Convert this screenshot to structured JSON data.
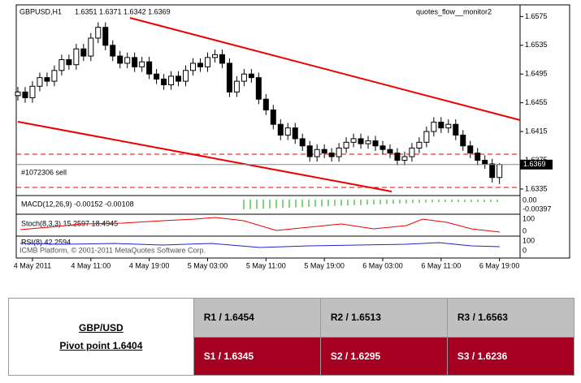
{
  "chart_data": {
    "type": "candlestick",
    "title": "GBPUSD,H1",
    "header_values": "1.6351 1.6371 1.6342 1.6369",
    "indicator_name": "quotes_flow__monitor2",
    "order_label": "#1072306 sell",
    "watermark": "ICMB Platform, © 2001-2011 MetaQuotes Software Corp.",
    "categories": [
      null,
      null,
      "4 May 2011",
      null,
      null,
      null,
      null,
      null,
      null,
      null,
      "4 May 11:00",
      null,
      null,
      null,
      null,
      null,
      null,
      null,
      "4 May 19:00",
      null,
      null,
      null,
      null,
      null,
      null,
      null,
      "5 May 03:00",
      null,
      null,
      null,
      null,
      null,
      null,
      null,
      "5 May 11:00",
      null,
      null,
      null,
      null,
      null,
      null,
      null,
      "5 May 19:00",
      null,
      null,
      null,
      null,
      null,
      null,
      null,
      "6 May 03:00",
      null,
      null,
      null,
      null,
      null,
      null,
      null,
      "6 May 11:00",
      null,
      null,
      null,
      null,
      null,
      null,
      null,
      "6 May 19:00"
    ],
    "open": [
      1.6465,
      1.647,
      1.6462,
      1.6478,
      1.649,
      1.6485,
      1.65,
      1.6515,
      1.6508,
      1.653,
      1.652,
      1.6545,
      1.656,
      1.6535,
      1.652,
      1.651,
      1.6518,
      1.6505,
      1.6512,
      1.6495,
      1.6488,
      1.648,
      1.6492,
      1.6485,
      1.65,
      1.651,
      1.6505,
      1.6518,
      1.6522,
      1.651,
      1.647,
      1.6485,
      1.6495,
      1.649,
      1.646,
      1.6445,
      1.6425,
      1.641,
      1.642,
      1.6405,
      1.6395,
      1.638,
      1.639,
      1.6385,
      1.638,
      1.6392,
      1.64,
      1.6405,
      1.6398,
      1.6402,
      1.6395,
      1.639,
      1.6385,
      1.6375,
      1.638,
      1.6392,
      1.64,
      1.6415,
      1.6428,
      1.642,
      1.6425,
      1.641,
      1.6395,
      1.6385,
      1.6375,
      1.637,
      1.6351
    ],
    "high": [
      1.6477,
      1.6477,
      1.6485,
      1.6497,
      1.6497,
      1.6507,
      1.6522,
      1.6522,
      1.6537,
      1.6537,
      1.6552,
      1.6567,
      1.6567,
      1.6542,
      1.6527,
      1.6525,
      1.6525,
      1.6519,
      1.6519,
      1.6502,
      1.6495,
      1.6499,
      1.6499,
      1.6507,
      1.6517,
      1.6517,
      1.6525,
      1.6529,
      1.6529,
      1.6517,
      1.6492,
      1.6502,
      1.6502,
      1.6497,
      1.6467,
      1.6452,
      1.6432,
      1.6427,
      1.6427,
      1.6412,
      1.6402,
      1.6397,
      1.6397,
      1.6392,
      1.6399,
      1.6407,
      1.6412,
      1.6412,
      1.6409,
      1.6409,
      1.6402,
      1.6397,
      1.6392,
      1.6387,
      1.6399,
      1.6407,
      1.6422,
      1.6435,
      1.6435,
      1.6432,
      1.6432,
      1.6417,
      1.6402,
      1.6392,
      1.6382,
      1.6377,
      1.6371
    ],
    "low": [
      1.6458,
      1.6455,
      1.6455,
      1.6471,
      1.6478,
      1.6478,
      1.6493,
      1.6501,
      1.6501,
      1.6513,
      1.6513,
      1.6538,
      1.6528,
      1.6513,
      1.6503,
      1.6503,
      1.6498,
      1.6498,
      1.6488,
      1.6481,
      1.6473,
      1.6473,
      1.6478,
      1.6478,
      1.6493,
      1.6498,
      1.6498,
      1.6511,
      1.6503,
      1.6463,
      1.6463,
      1.6478,
      1.6483,
      1.6453,
      1.6438,
      1.6418,
      1.6403,
      1.6403,
      1.6398,
      1.6388,
      1.6373,
      1.6373,
      1.6378,
      1.6373,
      1.6373,
      1.6385,
      1.6393,
      1.6391,
      1.6391,
      1.6388,
      1.6383,
      1.6378,
      1.6368,
      1.6368,
      1.6373,
      1.6385,
      1.6393,
      1.6408,
      1.6413,
      1.6413,
      1.6403,
      1.6388,
      1.6378,
      1.6368,
      1.6363,
      1.6344,
      1.6342
    ],
    "close": [
      1.647,
      1.6462,
      1.6478,
      1.649,
      1.6485,
      1.65,
      1.6515,
      1.6508,
      1.653,
      1.652,
      1.6545,
      1.656,
      1.6535,
      1.652,
      1.651,
      1.6518,
      1.6505,
      1.6512,
      1.6495,
      1.6488,
      1.648,
      1.6492,
      1.6485,
      1.65,
      1.651,
      1.6505,
      1.6518,
      1.6522,
      1.651,
      1.647,
      1.6485,
      1.6495,
      1.649,
      1.646,
      1.6445,
      1.6425,
      1.641,
      1.642,
      1.6405,
      1.6395,
      1.638,
      1.639,
      1.6385,
      1.638,
      1.6392,
      1.64,
      1.6405,
      1.6398,
      1.6402,
      1.6395,
      1.639,
      1.6385,
      1.6375,
      1.638,
      1.6392,
      1.64,
      1.6415,
      1.6428,
      1.642,
      1.6425,
      1.641,
      1.6395,
      1.6385,
      1.6375,
      1.637,
      1.6351,
      1.6369
    ],
    "ylim": [
      1.6327,
      1.6589
    ],
    "yticks": [
      1.6575,
      1.6535,
      1.6495,
      1.6455,
      1.6415,
      1.6375,
      1.6335
    ],
    "indicators": [
      {
        "label": "MACD(12,26,9) -0.00152 -0.00108",
        "scale": [
          "0.00",
          "-0.00397"
        ]
      },
      {
        "label": "Stoch(8,3,3) 15.2597 18.4945",
        "scale": [
          "100",
          "0"
        ]
      },
      {
        "label": "RSI(8) 42.2594",
        "scale": [
          "100",
          "0"
        ]
      }
    ]
  },
  "table": {
    "pair": "GBP/USD",
    "pivot": "Pivot point 1.6404",
    "resistance": [
      "R1 / 1.6454",
      "R2 / 1.6513",
      "R3 / 1.6563"
    ],
    "support": [
      "S1 / 1.6345",
      "S2 / 1.6295",
      "S3 / 1.6236"
    ]
  }
}
